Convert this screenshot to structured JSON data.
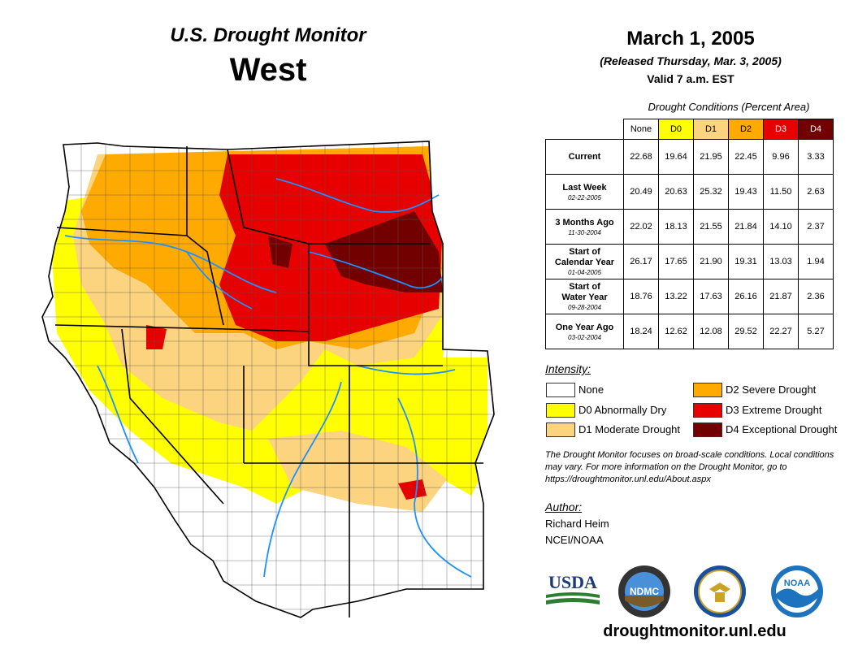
{
  "header": {
    "title": "U.S. Drought Monitor",
    "region": "West",
    "date": "March 1, 2005",
    "released": "(Released Thursday, Mar. 3, 2005)",
    "valid": "Valid 7 a.m. EST"
  },
  "table": {
    "caption": "Drought Conditions (Percent Area)",
    "columns": [
      {
        "label": "None",
        "color": "#ffffff"
      },
      {
        "label": "D0",
        "color": "#ffff00"
      },
      {
        "label": "D1",
        "color": "#fcd37f"
      },
      {
        "label": "D2",
        "color": "#ffaa00"
      },
      {
        "label": "D3",
        "color": "#e60000"
      },
      {
        "label": "D4",
        "color": "#730000"
      }
    ],
    "rows": [
      {
        "label": "Current",
        "date": "",
        "values": [
          "22.68",
          "19.64",
          "21.95",
          "22.45",
          "9.96",
          "3.33"
        ]
      },
      {
        "label": "Last Week",
        "date": "02-22-2005",
        "values": [
          "20.49",
          "20.63",
          "25.32",
          "19.43",
          "11.50",
          "2.63"
        ]
      },
      {
        "label": "3 Months Ago",
        "date": "11-30-2004",
        "values": [
          "22.02",
          "18.13",
          "21.55",
          "21.84",
          "14.10",
          "2.37"
        ]
      },
      {
        "label": "Start of Calendar Year",
        "date": "01-04-2005",
        "values": [
          "26.17",
          "17.65",
          "21.90",
          "19.31",
          "13.03",
          "1.94"
        ]
      },
      {
        "label": "Start of Water Year",
        "date": "09-28-2004",
        "values": [
          "18.76",
          "13.22",
          "17.63",
          "26.16",
          "21.87",
          "2.36"
        ]
      },
      {
        "label": "One Year Ago",
        "date": "03-02-2004",
        "values": [
          "18.24",
          "12.62",
          "12.08",
          "29.52",
          "22.27",
          "5.27"
        ]
      }
    ]
  },
  "legend": {
    "title": "Intensity:",
    "items": [
      {
        "label": "None",
        "color": "#ffffff"
      },
      {
        "label": "D0 Abnormally Dry",
        "color": "#ffff00"
      },
      {
        "label": "D1 Moderate Drought",
        "color": "#fcd37f"
      },
      {
        "label": "D2 Severe Drought",
        "color": "#ffaa00"
      },
      {
        "label": "D3 Extreme Drought",
        "color": "#e60000"
      },
      {
        "label": "D4 Exceptional Drought",
        "color": "#730000"
      }
    ]
  },
  "note": "The Drought Monitor focuses on broad-scale conditions. Local conditions may vary. For more information on the Drought Monitor, go to https://droughtmonitor.unl.edu/About.aspx",
  "author": {
    "label": "Author:",
    "name": "Richard Heim",
    "org": "NCEI/NOAA"
  },
  "logos": {
    "usda": "USDA",
    "ndmc": "NDMC",
    "noaa": "NOAA"
  },
  "site_url": "droughtmonitor.unl.edu",
  "colors": {
    "river": "#1e90ff",
    "state_border": "#000000",
    "county_border": "#555555"
  }
}
